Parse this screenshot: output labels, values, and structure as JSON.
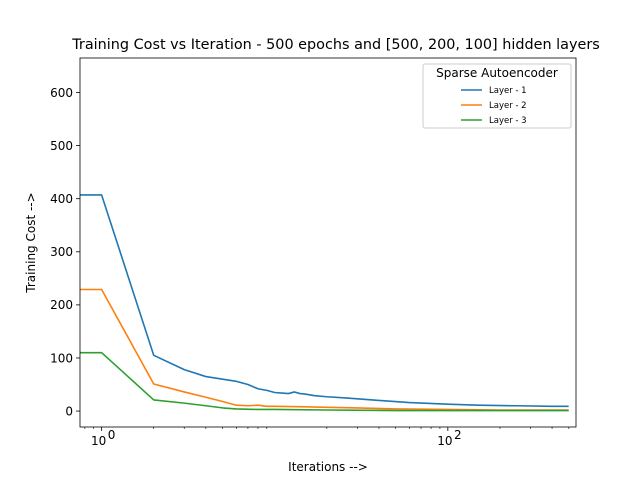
{
  "chart_data": {
    "type": "line",
    "title": "Training Cost vs Iteration - 500 epochs and [500, 200, 100] hidden layers",
    "xlabel": "Iterations -->",
    "ylabel": "Training Cost -->",
    "xscale": "log",
    "xlim": [
      0.75,
      550
    ],
    "ylim": [
      -30,
      665
    ],
    "yticks": [
      0,
      100,
      200,
      300,
      400,
      500,
      600
    ],
    "xticks": [
      {
        "value": 1,
        "label": "10",
        "exp": "0"
      },
      {
        "value": 100,
        "label": "10",
        "exp": "2"
      }
    ],
    "grid": false,
    "legend": {
      "title": "Sparse Autoencoder",
      "position": "upper right"
    },
    "series": [
      {
        "name": "Layer - 1",
        "color": "#1f77b4",
        "x": [
          0,
          1,
          2,
          3,
          4,
          5,
          6,
          7,
          8,
          9,
          10,
          11,
          12,
          13,
          14,
          15,
          17,
          20,
          25,
          30,
          40,
          60,
          100,
          150,
          250,
          400,
          499
        ],
        "y": [
          407,
          407,
          105,
          78,
          65,
          60,
          56,
          50,
          42,
          39,
          35,
          34,
          33,
          36,
          33,
          32,
          29,
          27,
          25,
          23,
          20,
          16,
          13,
          11,
          10,
          9,
          9
        ]
      },
      {
        "name": "Layer - 2",
        "color": "#ff7f0e",
        "x": [
          0,
          1,
          2,
          3,
          4,
          5,
          6,
          7,
          8,
          9,
          10,
          15,
          20,
          30,
          50,
          100,
          200,
          499
        ],
        "y": [
          229,
          229,
          51,
          36,
          26,
          18,
          11,
          10,
          11,
          9,
          9,
          8,
          7,
          6,
          4,
          3,
          2,
          2
        ]
      },
      {
        "name": "Layer - 3",
        "color": "#2ca02c",
        "x": [
          0,
          1,
          2,
          3,
          4,
          5,
          6,
          8,
          10,
          20,
          50,
          100,
          499
        ],
        "y": [
          110,
          110,
          21,
          15,
          10,
          6,
          4,
          3,
          3,
          2,
          1,
          1,
          1
        ]
      }
    ]
  }
}
